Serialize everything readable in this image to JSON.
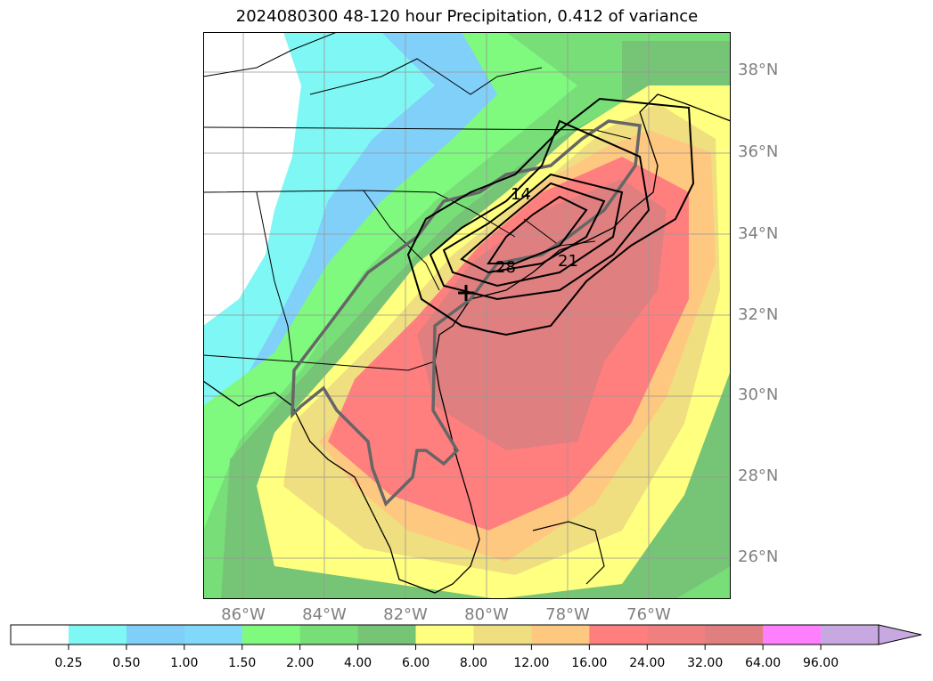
{
  "title": "2024080300 48-120 hour Precipitation, 0.412 of variance",
  "lat_labels": [
    "38°N",
    "36°N",
    "34°N",
    "32°N",
    "30°N",
    "28°N",
    "26°N"
  ],
  "lon_labels": [
    "86°W",
    "84°W",
    "82°W",
    "80°W",
    "78°W",
    "76°W"
  ],
  "contour_labels": [
    "14",
    "28",
    "21"
  ],
  "colorbar": {
    "levels": [
      "0.25",
      "0.50",
      "1.00",
      "1.50",
      "2.00",
      "4.00",
      "6.00",
      "8.00",
      "12.00",
      "16.00",
      "24.00",
      "32.00",
      "64.00",
      "96.00"
    ],
    "colors": [
      "#ffffff",
      "#7ff7f4",
      "#7fcff8",
      "#80d8fb",
      "#7ffa7f",
      "#78df78",
      "#76c476",
      "#ffff80",
      "#f0df80",
      "#ffc880",
      "#ff7f7f",
      "#f08080",
      "#e07f7f",
      "#ff80ff",
      "#c8a8e0"
    ],
    "extend": "max"
  },
  "chart_data": {
    "type": "map",
    "title": "2024080300 48-120 hour Precipitation, 0.412 of variance",
    "lon_range": [
      -87,
      -74
    ],
    "lat_range": [
      25,
      39
    ],
    "grid": true,
    "contour_levels_labeled": [
      14,
      21,
      28
    ]
  }
}
